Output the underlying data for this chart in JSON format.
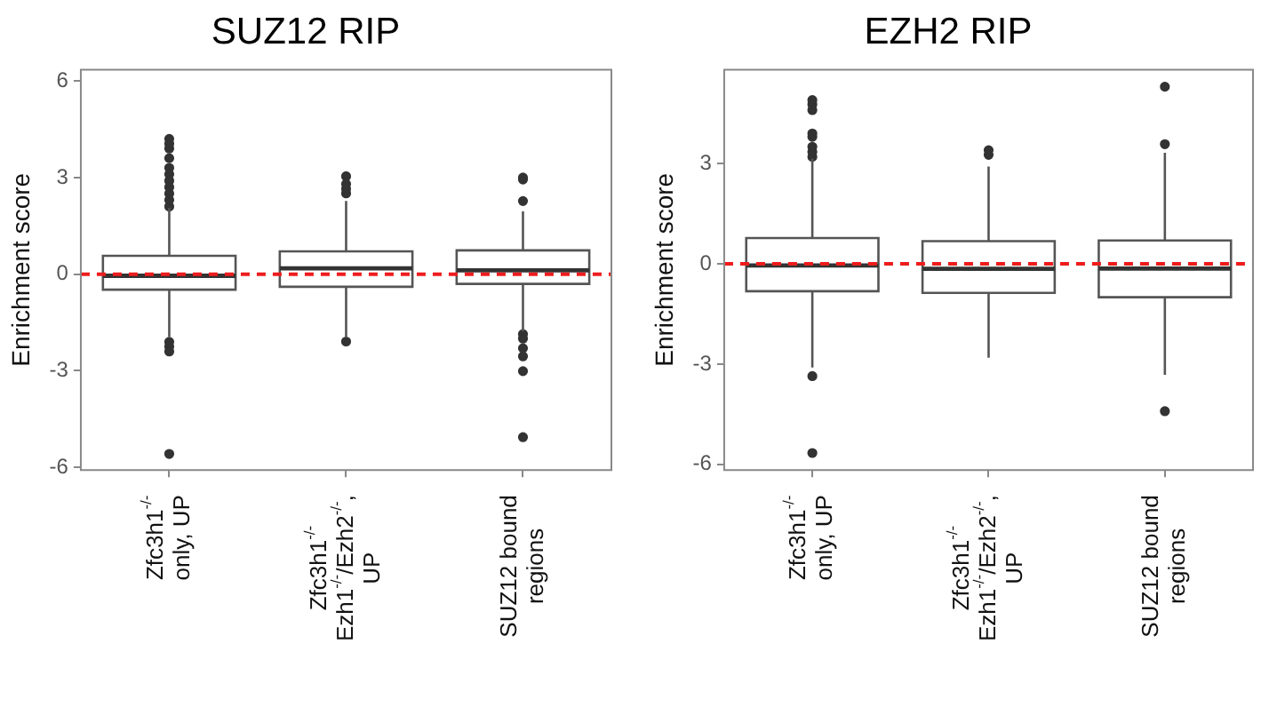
{
  "chart_data": [
    {
      "type": "box",
      "title": "SUZ12 RIP",
      "ylabel": "Enrichment score",
      "categories": [
        "Zfc3h1$^{-/-}$\nonly, UP",
        "Zfc3h1$^{-/-}$\nEzh1$^{-/-}$/Ezh2$^{-/-}$,\nUP",
        "SUZ12 bound\nregions"
      ],
      "boxes": [
        {
          "low": -1.95,
          "q1": -0.48,
          "median": -0.05,
          "q3": 0.57,
          "high": 2.05,
          "outliers": [
            2.1,
            2.3,
            2.5,
            2.7,
            2.9,
            3.1,
            3.3,
            3.6,
            3.9,
            4.05,
            4.2,
            -2.1,
            -2.25,
            -2.4,
            -5.58
          ]
        },
        {
          "low": -1.95,
          "q1": -0.39,
          "median": 0.18,
          "q3": 0.71,
          "high": 2.27,
          "outliers": [
            2.51,
            2.65,
            2.8,
            3.04,
            -2.09
          ]
        },
        {
          "low": -1.77,
          "q1": -0.3,
          "median": 0.12,
          "q3": 0.74,
          "high": 1.95,
          "outliers": [
            2.27,
            2.94,
            3.0,
            -1.86,
            -2.0,
            -2.3,
            -2.55,
            -3.01,
            -5.06
          ]
        }
      ],
      "color": "#ffffff",
      "ylim": [
        -6.08,
        6.35
      ],
      "yticks": [
        -6,
        -3,
        0,
        3,
        6
      ],
      "grid": false,
      "ref_lines": [
        {
          "axis": "y",
          "value": 0,
          "color": "#ee1c1c",
          "line_style": "dashed"
        }
      ]
    },
    {
      "type": "box",
      "title": "EZH2 RIP",
      "ylabel": "Enrichment score",
      "categories": [
        "Zfc3h1$^{-/-}$\nonly, UP",
        "Zfc3h1$^{-/-}$\nEzh1$^{-/-}$/Ezh2$^{-/-}$,\nUP",
        "SUZ12 bound\nregions"
      ],
      "boxes": [
        {
          "low": -3.1,
          "q1": -0.82,
          "median": -0.05,
          "q3": 0.77,
          "high": 3.15,
          "outliers": [
            3.2,
            3.35,
            3.5,
            3.8,
            3.9,
            4.6,
            4.77,
            4.9,
            -3.36,
            -5.66
          ]
        },
        {
          "low": -2.81,
          "q1": -0.87,
          "median": -0.15,
          "q3": 0.68,
          "high": 2.91,
          "outliers": [
            3.26,
            3.4
          ]
        },
        {
          "low": -3.32,
          "q1": -1.0,
          "median": -0.14,
          "q3": 0.7,
          "high": 3.32,
          "outliers": [
            3.58,
            5.3,
            -4.41
          ]
        }
      ],
      "color": "#ffffff",
      "ylim": [
        -6.17,
        5.81
      ],
      "yticks": [
        -6,
        -3,
        0,
        3
      ],
      "grid": false,
      "ref_lines": [
        {
          "axis": "y",
          "value": 0,
          "color": "#ee1c1c",
          "line_style": "dashed"
        }
      ]
    }
  ]
}
